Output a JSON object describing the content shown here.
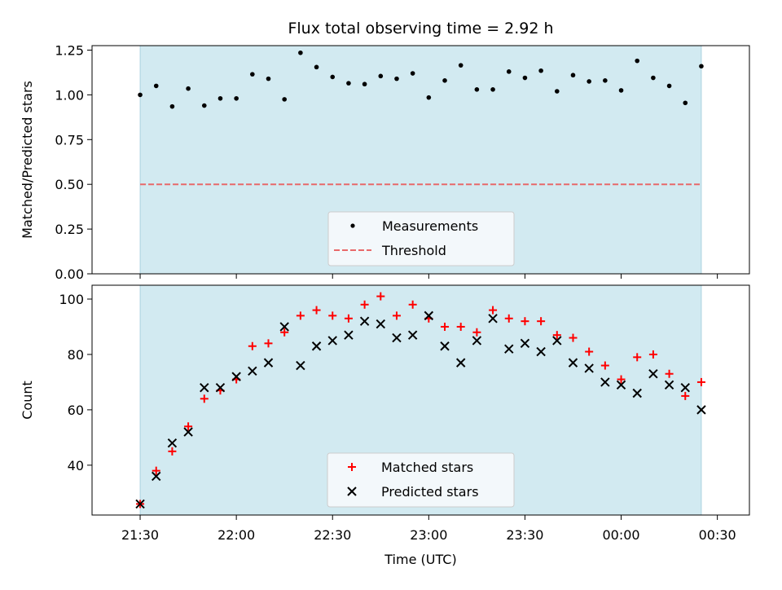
{
  "colors": {
    "shade": "#add8e6",
    "measurement": "#000000",
    "threshold": "#e8696a",
    "matched": "#ff0000",
    "predicted": "#000000"
  },
  "chart_data": [
    {
      "type": "scatter",
      "title": "Flux total observing time = 2.92 h",
      "xlabel": "",
      "ylabel": "Matched/Predicted stars",
      "ylim": [
        0.0,
        1.275
      ],
      "yticks": [
        0.0,
        0.25,
        0.5,
        0.75,
        1.0,
        1.25
      ],
      "ytick_labels": [
        "0.00",
        "0.25",
        "0.50",
        "0.75",
        "1.00",
        "1.25"
      ],
      "shaded_range": [
        "21:30",
        "24:25"
      ],
      "threshold": 0.5,
      "legend": {
        "position": "bottom-center",
        "entries": [
          "Measurements",
          "Threshold"
        ]
      },
      "series": [
        {
          "name": "Measurements",
          "marker": "dot",
          "x": [
            "21:30",
            "21:35",
            "21:40",
            "21:45",
            "21:50",
            "21:55",
            "22:00",
            "22:05",
            "22:10",
            "22:15",
            "22:20",
            "22:25",
            "22:30",
            "22:35",
            "22:40",
            "22:45",
            "22:50",
            "22:55",
            "23:00",
            "23:05",
            "23:10",
            "23:15",
            "23:20",
            "23:25",
            "23:30",
            "23:35",
            "23:40",
            "23:45",
            "23:50",
            "23:55",
            "00:00",
            "00:05",
            "00:10",
            "00:15",
            "00:20",
            "00:25"
          ],
          "y": [
            1.0,
            1.05,
            0.935,
            1.035,
            0.94,
            0.98,
            0.98,
            1.115,
            1.09,
            0.975,
            1.235,
            1.155,
            1.1,
            1.065,
            1.06,
            1.105,
            1.09,
            1.12,
            0.985,
            1.08,
            1.165,
            1.03,
            1.03,
            1.13,
            1.095,
            1.135,
            1.02,
            1.11,
            1.075,
            1.08,
            1.025,
            1.19,
            1.095,
            1.05,
            0.955,
            1.16
          ]
        },
        {
          "name": "Threshold",
          "style": "dashed",
          "y": 0.5
        }
      ]
    },
    {
      "type": "scatter",
      "title": "",
      "xlabel": "Time (UTC)",
      "ylabel": "Count",
      "ylim": [
        22,
        105
      ],
      "yticks": [
        40,
        60,
        80,
        100
      ],
      "ytick_labels": [
        "40",
        "60",
        "80",
        "100"
      ],
      "xticks": [
        "21:30",
        "22:00",
        "22:30",
        "23:00",
        "23:30",
        "00:00",
        "00:30"
      ],
      "shaded_range": [
        "21:30",
        "24:25"
      ],
      "legend": {
        "position": "bottom-center",
        "entries": [
          "Matched stars",
          "Predicted stars"
        ]
      },
      "series": [
        {
          "name": "Matched stars",
          "marker": "plus",
          "x": [
            "21:30",
            "21:35",
            "21:40",
            "21:45",
            "21:50",
            "21:55",
            "22:00",
            "22:05",
            "22:10",
            "22:15",
            "22:20",
            "22:25",
            "22:30",
            "22:35",
            "22:40",
            "22:45",
            "22:50",
            "22:55",
            "23:00",
            "23:05",
            "23:10",
            "23:15",
            "23:20",
            "23:25",
            "23:30",
            "23:35",
            "23:40",
            "23:45",
            "23:50",
            "23:55",
            "00:00",
            "00:05",
            "00:10",
            "00:15",
            "00:20",
            "00:25"
          ],
          "y": [
            26,
            38,
            45,
            54,
            64,
            67,
            71,
            83,
            84,
            88,
            94,
            96,
            94,
            93,
            98,
            101,
            94,
            98,
            93,
            90,
            90,
            88,
            96,
            93,
            92,
            92,
            87,
            86,
            81,
            76,
            71,
            79,
            80,
            73,
            65,
            70
          ]
        },
        {
          "name": "Predicted stars",
          "marker": "x",
          "x": [
            "21:30",
            "21:35",
            "21:40",
            "21:45",
            "21:50",
            "21:55",
            "22:00",
            "22:05",
            "22:10",
            "22:15",
            "22:20",
            "22:25",
            "22:30",
            "22:35",
            "22:40",
            "22:45",
            "22:50",
            "22:55",
            "23:00",
            "23:05",
            "23:10",
            "23:15",
            "23:20",
            "23:25",
            "23:30",
            "23:35",
            "23:40",
            "23:45",
            "23:50",
            "23:55",
            "00:00",
            "00:05",
            "00:10",
            "00:15",
            "00:20",
            "00:25"
          ],
          "y": [
            26,
            36,
            48,
            52,
            68,
            68,
            72,
            74,
            77,
            90,
            76,
            83,
            85,
            87,
            92,
            91,
            86,
            87,
            94,
            83,
            77,
            85,
            93,
            82,
            84,
            81,
            85,
            77,
            75,
            70,
            69,
            66,
            73,
            69,
            68,
            60
          ]
        }
      ]
    }
  ]
}
